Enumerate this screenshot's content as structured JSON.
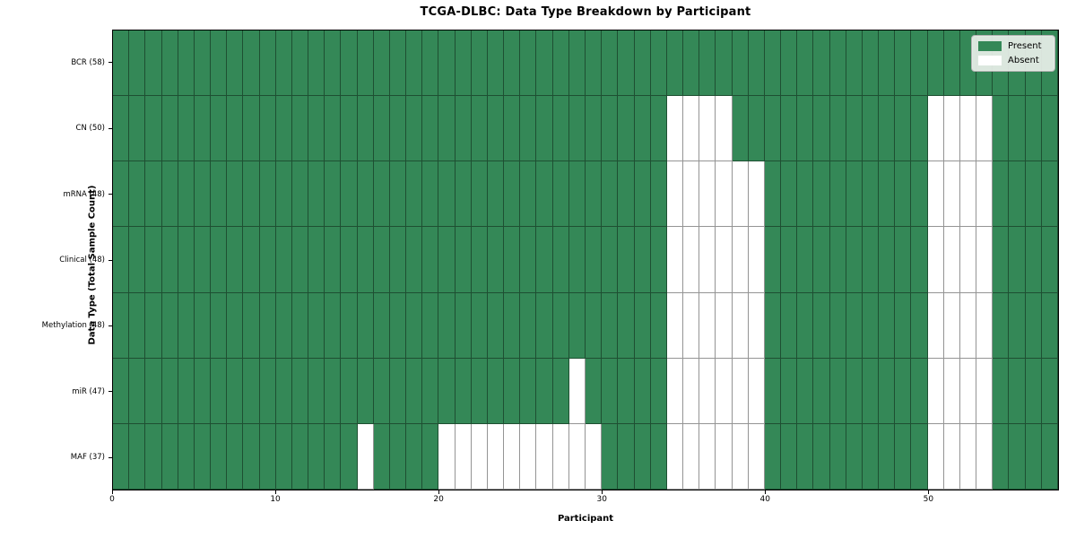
{
  "colors": {
    "present": "#348857",
    "absent": "#ffffff",
    "cell_edge": "rgba(0,0,0,0.42)",
    "legend_bg": "#e9efe9",
    "legend_border": "#b3b3b3"
  },
  "chart_data": {
    "type": "heatmap",
    "title": "TCGA-DLBC: Data Type Breakdown by Participant",
    "xlabel": "Participant",
    "ylabel": "Data Type (Total Sample Count)",
    "x_range": [
      0,
      58
    ],
    "x_ticks": [
      "0",
      "10",
      "20",
      "30",
      "40",
      "50"
    ],
    "x_tick_values": [
      0,
      10,
      20,
      30,
      40,
      50
    ],
    "n_participants": 58,
    "grid": true,
    "legend_position": "upper right",
    "legend": [
      {
        "label": "Present",
        "value": "present"
      },
      {
        "label": "Absent",
        "value": "absent"
      }
    ],
    "rows": [
      {
        "label": "BCR (58)",
        "data_type": "BCR",
        "total_samples": 58,
        "absent_participants": []
      },
      {
        "label": "CN (50)",
        "data_type": "CN",
        "total_samples": 50,
        "absent_participants": [
          34,
          35,
          36,
          37,
          50,
          51,
          52,
          53
        ]
      },
      {
        "label": "mRNA (48)",
        "data_type": "mRNA",
        "total_samples": 48,
        "absent_participants": [
          34,
          35,
          36,
          37,
          38,
          39,
          50,
          51,
          52,
          53
        ]
      },
      {
        "label": "Clinical (48)",
        "data_type": "Clinical",
        "total_samples": 48,
        "absent_participants": [
          34,
          35,
          36,
          37,
          38,
          39,
          50,
          51,
          52,
          53
        ]
      },
      {
        "label": "Methylation (48)",
        "data_type": "Methylation",
        "total_samples": 48,
        "absent_participants": [
          34,
          35,
          36,
          37,
          38,
          39,
          50,
          51,
          52,
          53
        ]
      },
      {
        "label": "miR (47)",
        "data_type": "miR",
        "total_samples": 47,
        "absent_participants": [
          28,
          34,
          35,
          36,
          37,
          38,
          39,
          50,
          51,
          52,
          53
        ]
      },
      {
        "label": "MAF (37)",
        "data_type": "MAF",
        "total_samples": 37,
        "absent_participants": [
          15,
          20,
          21,
          22,
          23,
          24,
          25,
          26,
          27,
          28,
          29,
          34,
          35,
          36,
          37,
          38,
          39,
          50,
          51,
          52,
          53
        ]
      }
    ]
  }
}
